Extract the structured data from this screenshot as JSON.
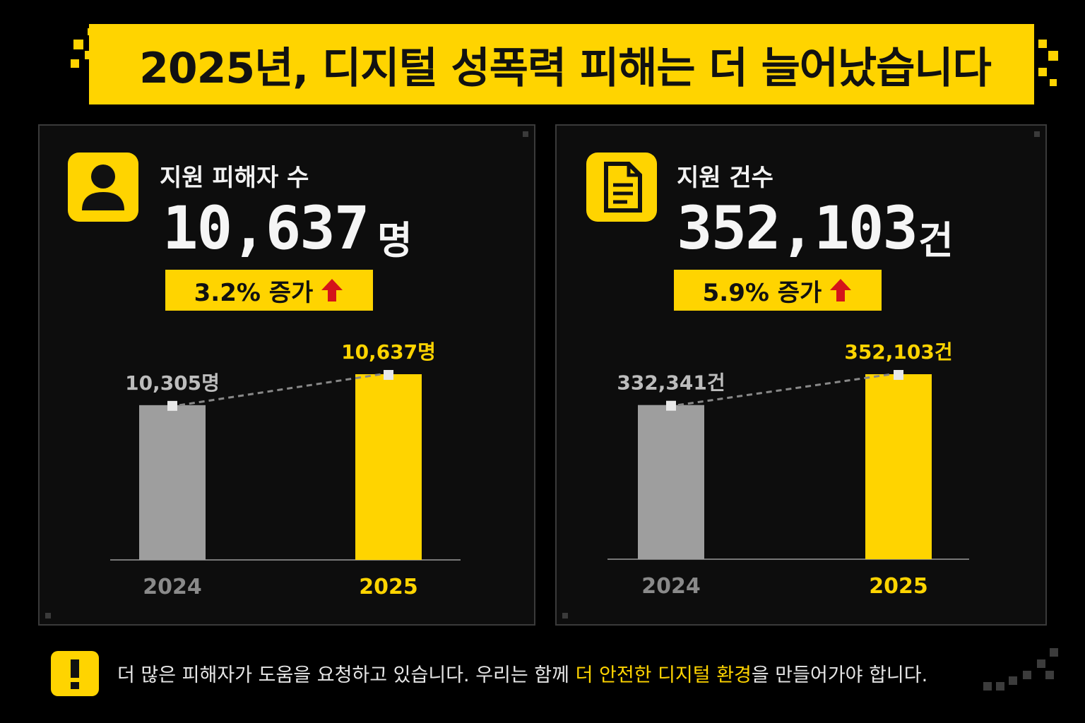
{
  "title": "2025년, 디지털 성폭력 피해는 더 늘어났습니다",
  "colors": {
    "accent": "#ffd400",
    "bar_2024": "#9e9e9e",
    "bar_2025": "#ffd400",
    "up_arrow": "#d4141a",
    "background": "#000000"
  },
  "panels": [
    {
      "icon": "person-icon",
      "label": "지원 피해자 수",
      "value": "10,637",
      "unit": "명",
      "change": "3.2% 증가"
    },
    {
      "icon": "document-icon",
      "label": "지원 건수",
      "value": "352,103",
      "unit": "건",
      "change": "5.9% 증가"
    }
  ],
  "chart_data": [
    {
      "type": "bar",
      "categories": [
        "2024",
        "2025"
      ],
      "values": [
        10305,
        10637
      ],
      "data_labels": [
        "10,305명",
        "10,637명"
      ]
    },
    {
      "type": "bar",
      "categories": [
        "2024",
        "2025"
      ],
      "values": [
        332341,
        352103
      ],
      "data_labels": [
        "332,341건",
        "352,103건"
      ]
    }
  ],
  "footer": {
    "alert_icon": "exclamation-icon",
    "text_before": "더 많은 피해자가 도움을 요청하고 있습니다. 우리는 함께 ",
    "text_highlight": "더 안전한 디지털 환경",
    "text_after": "을 만들어가야 합니다."
  }
}
